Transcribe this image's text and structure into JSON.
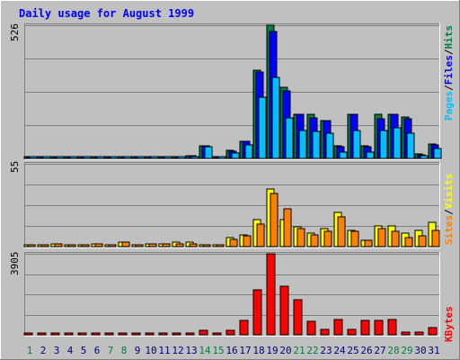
{
  "title": "Daily usage for August 1999",
  "colors": {
    "background": "#c0c0c0",
    "title": "#0000ff",
    "hits": "#008040",
    "files": "#0000ff",
    "pages": "#00c0ff",
    "visits": "#ffff00",
    "sites": "#ff8000",
    "kbytes": "#ff0000",
    "weekend_label": "#008040",
    "weekday_label": "#000080"
  },
  "chart_data": [
    {
      "type": "bar",
      "panel": "hits-files-pages",
      "ymax_label": "526",
      "ylim": [
        0,
        526
      ],
      "categories": [
        "1",
        "2",
        "3",
        "4",
        "5",
        "6",
        "7",
        "8",
        "9",
        "10",
        "11",
        "12",
        "13",
        "14",
        "15",
        "16",
        "17",
        "18",
        "19",
        "20",
        "21",
        "22",
        "23",
        "24",
        "25",
        "26",
        "27",
        "28",
        "29",
        "30",
        "31"
      ],
      "weekend_days": [
        "1",
        "7",
        "8",
        "14",
        "15",
        "21",
        "22",
        "28",
        "29"
      ],
      "legend": [
        {
          "label": "Pages",
          "color": "#00c0ff"
        },
        {
          "label": "/",
          "color": "#000000"
        },
        {
          "label": "Files",
          "color": "#0000ff"
        },
        {
          "label": "/",
          "color": "#000000"
        },
        {
          "label": "Hits",
          "color": "#008040"
        }
      ],
      "series": [
        {
          "name": "Hits",
          "values": [
            5,
            5,
            5,
            5,
            8,
            7,
            7,
            8,
            6,
            6,
            6,
            8,
            10,
            48,
            2,
            32,
            68,
            350,
            526,
            280,
            175,
            175,
            150,
            50,
            175,
            50,
            175,
            175,
            162,
            18,
            58
          ]
        },
        {
          "name": "Files",
          "values": [
            4,
            4,
            4,
            4,
            7,
            6,
            6,
            7,
            5,
            5,
            5,
            7,
            9,
            48,
            2,
            30,
            68,
            340,
            500,
            265,
            175,
            160,
            150,
            45,
            175,
            45,
            155,
            175,
            155,
            15,
            55
          ]
        },
        {
          "name": "Pages",
          "values": [
            3,
            3,
            3,
            3,
            5,
            4,
            4,
            5,
            3,
            3,
            3,
            5,
            6,
            46,
            1,
            20,
            55,
            240,
            320,
            160,
            110,
            105,
            100,
            25,
            110,
            25,
            110,
            120,
            100,
            12,
            40
          ]
        }
      ]
    },
    {
      "type": "bar",
      "panel": "visits-sites",
      "ymax_label": "55",
      "ylim": [
        0,
        55
      ],
      "categories": [
        "1",
        "2",
        "3",
        "4",
        "5",
        "6",
        "7",
        "8",
        "9",
        "10",
        "11",
        "12",
        "13",
        "14",
        "15",
        "16",
        "17",
        "18",
        "19",
        "20",
        "21",
        "22",
        "23",
        "24",
        "25",
        "26",
        "27",
        "28",
        "29",
        "30",
        "31"
      ],
      "legend": [
        {
          "label": "Sites",
          "color": "#ff8000"
        },
        {
          "label": "/",
          "color": "#000000"
        },
        {
          "label": "Visits",
          "color": "#ffff00"
        }
      ],
      "series": [
        {
          "name": "Visits",
          "values": [
            1,
            1,
            2,
            1,
            1,
            2,
            1,
            3,
            1,
            2,
            2,
            3,
            3,
            1,
            0,
            6,
            8,
            18,
            38,
            18,
            13,
            9,
            12,
            23,
            11,
            4,
            14,
            14,
            9,
            11,
            16
          ]
        },
        {
          "name": "Sites",
          "values": [
            1,
            1,
            2,
            1,
            1,
            2,
            1,
            3,
            1,
            2,
            2,
            2,
            2,
            1,
            0,
            5,
            7,
            15,
            35,
            25,
            12,
            8,
            10,
            20,
            10,
            4,
            12,
            10,
            6,
            7,
            11
          ]
        }
      ]
    },
    {
      "type": "bar",
      "panel": "kbytes",
      "ymax_label": "3905",
      "ylim": [
        0,
        3905
      ],
      "categories": [
        "1",
        "2",
        "3",
        "4",
        "5",
        "6",
        "7",
        "8",
        "9",
        "10",
        "11",
        "12",
        "13",
        "14",
        "15",
        "16",
        "17",
        "18",
        "19",
        "20",
        "21",
        "22",
        "23",
        "24",
        "25",
        "26",
        "27",
        "28",
        "29",
        "30",
        "31"
      ],
      "legend": [
        {
          "label": "KBytes",
          "color": "#ff0000"
        }
      ],
      "series": [
        {
          "name": "KBytes",
          "values": [
            50,
            50,
            50,
            50,
            50,
            50,
            50,
            50,
            50,
            50,
            50,
            50,
            50,
            220,
            0,
            220,
            680,
            2180,
            3905,
            2360,
            1700,
            650,
            280,
            740,
            280,
            700,
            680,
            720,
            140,
            140,
            340
          ]
        }
      ]
    }
  ]
}
